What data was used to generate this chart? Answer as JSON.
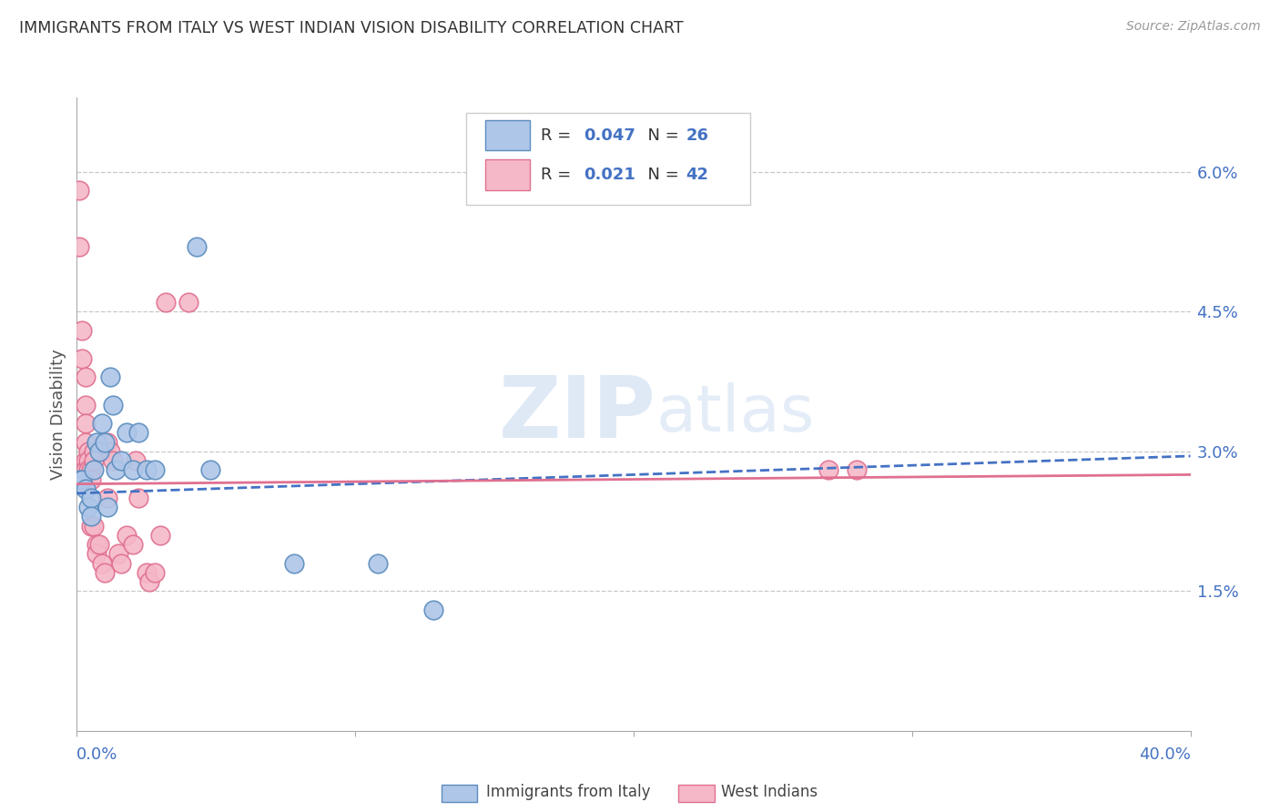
{
  "title": "IMMIGRANTS FROM ITALY VS WEST INDIAN VISION DISABILITY CORRELATION CHART",
  "source": "Source: ZipAtlas.com",
  "ylabel": "Vision Disability",
  "ylabel_right_ticks": [
    "6.0%",
    "4.5%",
    "3.0%",
    "1.5%"
  ],
  "ylabel_right_vals": [
    0.06,
    0.045,
    0.03,
    0.015
  ],
  "xmin": 0.0,
  "xmax": 0.4,
  "ymin": 0.0,
  "ymax": 0.068,
  "legend_italy_R": "0.047",
  "legend_italy_N": "26",
  "legend_wi_R": "0.021",
  "legend_wi_N": "42",
  "legend_label_italy": "Immigrants from Italy",
  "legend_label_wi": "West Indians",
  "italy_color": "#aec6e8",
  "wi_color": "#f5b8c8",
  "italy_edge_color": "#5b8dbe",
  "wi_edge_color": "#e07090",
  "italy_line_color": "#4472c4",
  "wi_line_color": "#e07090",
  "blue_text": "#4472c4",
  "italy_scatter": [
    [
      0.001,
      0.027
    ],
    [
      0.002,
      0.027
    ],
    [
      0.003,
      0.026
    ],
    [
      0.004,
      0.024
    ],
    [
      0.005,
      0.025
    ],
    [
      0.005,
      0.023
    ],
    [
      0.006,
      0.028
    ],
    [
      0.007,
      0.031
    ],
    [
      0.008,
      0.03
    ],
    [
      0.009,
      0.033
    ],
    [
      0.01,
      0.031
    ],
    [
      0.011,
      0.024
    ],
    [
      0.012,
      0.038
    ],
    [
      0.013,
      0.035
    ],
    [
      0.014,
      0.028
    ],
    [
      0.016,
      0.029
    ],
    [
      0.018,
      0.032
    ],
    [
      0.02,
      0.028
    ],
    [
      0.022,
      0.032
    ],
    [
      0.025,
      0.028
    ],
    [
      0.028,
      0.028
    ],
    [
      0.043,
      0.052
    ],
    [
      0.048,
      0.028
    ],
    [
      0.078,
      0.018
    ],
    [
      0.108,
      0.018
    ],
    [
      0.128,
      0.013
    ]
  ],
  "wi_scatter": [
    [
      0.001,
      0.058
    ],
    [
      0.001,
      0.052
    ],
    [
      0.002,
      0.043
    ],
    [
      0.002,
      0.04
    ],
    [
      0.003,
      0.038
    ],
    [
      0.003,
      0.035
    ],
    [
      0.003,
      0.033
    ],
    [
      0.003,
      0.031
    ],
    [
      0.003,
      0.029
    ],
    [
      0.003,
      0.028
    ],
    [
      0.004,
      0.03
    ],
    [
      0.004,
      0.029
    ],
    [
      0.004,
      0.028
    ],
    [
      0.005,
      0.028
    ],
    [
      0.005,
      0.027
    ],
    [
      0.005,
      0.022
    ],
    [
      0.006,
      0.03
    ],
    [
      0.006,
      0.029
    ],
    [
      0.006,
      0.022
    ],
    [
      0.007,
      0.02
    ],
    [
      0.007,
      0.019
    ],
    [
      0.008,
      0.02
    ],
    [
      0.009,
      0.018
    ],
    [
      0.01,
      0.017
    ],
    [
      0.011,
      0.031
    ],
    [
      0.011,
      0.025
    ],
    [
      0.012,
      0.03
    ],
    [
      0.013,
      0.029
    ],
    [
      0.015,
      0.019
    ],
    [
      0.016,
      0.018
    ],
    [
      0.018,
      0.021
    ],
    [
      0.02,
      0.02
    ],
    [
      0.021,
      0.029
    ],
    [
      0.022,
      0.025
    ],
    [
      0.025,
      0.017
    ],
    [
      0.026,
      0.016
    ],
    [
      0.028,
      0.017
    ],
    [
      0.03,
      0.021
    ],
    [
      0.032,
      0.046
    ],
    [
      0.04,
      0.046
    ],
    [
      0.27,
      0.028
    ],
    [
      0.28,
      0.028
    ]
  ],
  "italy_trend_x": [
    0.0,
    0.4
  ],
  "italy_trend_y": [
    0.0255,
    0.0295
  ],
  "wi_trend_x": [
    0.0,
    0.4
  ],
  "wi_trend_y": [
    0.0265,
    0.0275
  ],
  "watermark_zip": "ZIP",
  "watermark_atlas": "atlas",
  "background_color": "#ffffff",
  "grid_color": "#c8c8c8"
}
